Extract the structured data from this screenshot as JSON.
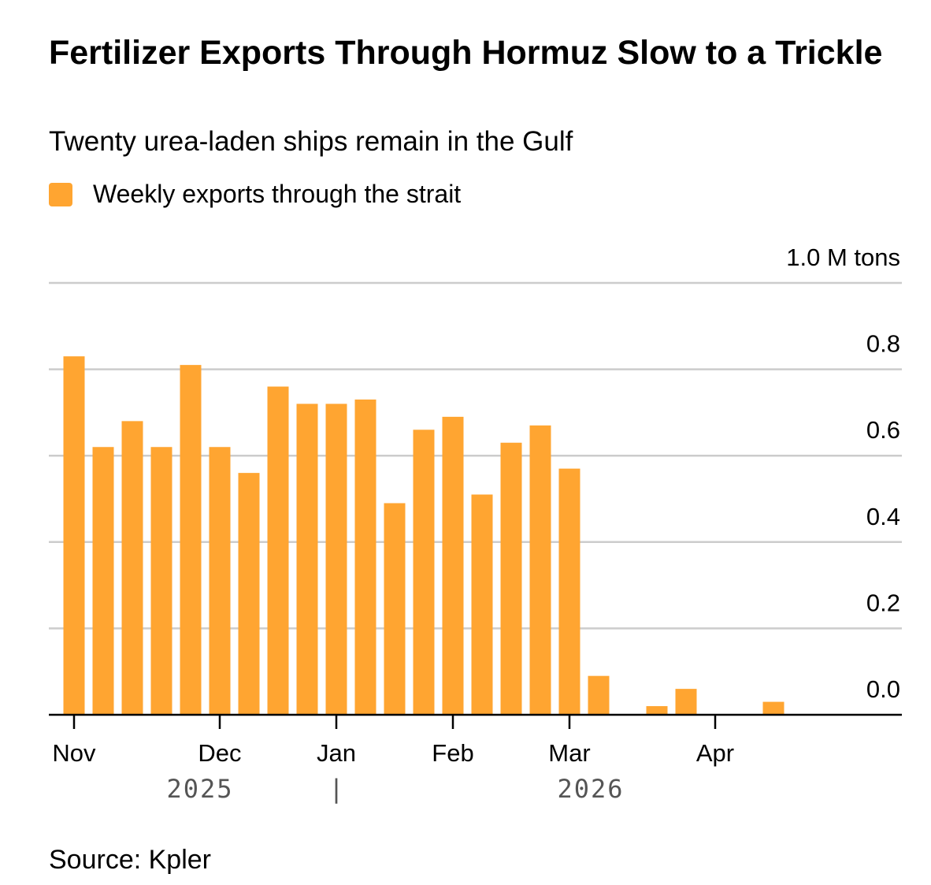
{
  "chart_data": {
    "type": "bar",
    "title": "Fertilizer Exports Through Hormuz Slow to a Trickle",
    "subtitle": "Twenty urea-laden ships remain in the Gulf",
    "source": "Source: Kpler",
    "categories": [
      "Nov",
      null,
      null,
      null,
      null,
      "Dec",
      null,
      null,
      null,
      "Jan",
      null,
      null,
      null,
      "Feb",
      null,
      null,
      null,
      "Mar",
      null,
      null,
      null,
      null,
      "Apr",
      null,
      null
    ],
    "year_labels": [
      "2025",
      "|",
      "2026"
    ],
    "series": [
      {
        "name": "Weekly exports through the strait",
        "color": "#ffa531",
        "values": [
          0.83,
          0.62,
          0.68,
          0.62,
          0.81,
          0.62,
          0.56,
          0.76,
          0.72,
          0.72,
          0.73,
          0.49,
          0.66,
          0.69,
          0.51,
          0.63,
          0.67,
          0.57,
          0.09,
          0,
          0.02,
          0.06,
          0,
          0,
          0.03
        ]
      }
    ],
    "ylim": [
      0,
      1.0
    ],
    "yticks": [
      {
        "value": 0,
        "label": "0.0"
      },
      0.2,
      0.4,
      0.6,
      0.8,
      {
        "value": 1.0,
        "label": "1.0 M tons"
      }
    ],
    "grid": true
  }
}
